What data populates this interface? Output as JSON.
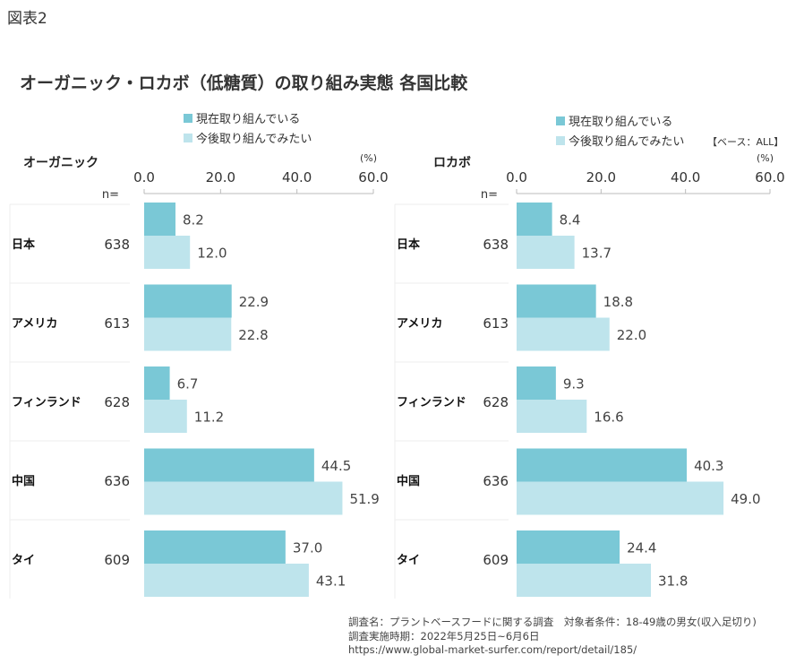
{
  "figure_label": "図表2",
  "title": "オーガニック・ロカボ（低糖質）の取り組み実態 各国比較",
  "base_note": "【ベース：ALL】",
  "source": [
    "調査名：プラントベースフードに関する調査　対象者条件：18-49歳の男女(収入足切り)",
    "調査実施時期：2022年5月25日~6月6日",
    "https://www.global-market-surfer.com/report/detail/185/"
  ],
  "colors": {
    "current": "#7AC8D6",
    "future": "#BEE4EC"
  },
  "chart_data": [
    {
      "type": "bar",
      "orientation": "horizontal",
      "title": "オーガニック",
      "unit_label": "(%)",
      "n_label": "n=",
      "xlim": [
        0,
        60
      ],
      "ticks": [
        "0.0",
        "20.0",
        "40.0",
        "60.0"
      ],
      "categories": [
        "日本",
        "アメリカ",
        "フィンランド",
        "中国",
        "タイ"
      ],
      "n": [
        638,
        613,
        628,
        636,
        609
      ],
      "series": [
        {
          "name": "現在取り組んでいる",
          "values": [
            8.2,
            22.9,
            6.7,
            44.5,
            37.0
          ]
        },
        {
          "name": "今後取り組んでみたい",
          "values": [
            12.0,
            22.8,
            11.2,
            51.9,
            43.1
          ]
        }
      ],
      "legend": "top"
    },
    {
      "type": "bar",
      "orientation": "horizontal",
      "title": "ロカボ",
      "unit_label": "(%)",
      "n_label": "n=",
      "xlim": [
        0,
        60
      ],
      "ticks": [
        "0.0",
        "20.0",
        "40.0",
        "60.0"
      ],
      "categories": [
        "日本",
        "アメリカ",
        "フィンランド",
        "中国",
        "タイ"
      ],
      "n": [
        638,
        613,
        628,
        636,
        609
      ],
      "series": [
        {
          "name": "現在取り組んでいる",
          "values": [
            8.4,
            18.8,
            9.3,
            40.3,
            24.4
          ]
        },
        {
          "name": "今後取り組んでみたい",
          "values": [
            13.7,
            22.0,
            16.6,
            49.0,
            31.8
          ]
        }
      ],
      "legend": "top"
    }
  ]
}
